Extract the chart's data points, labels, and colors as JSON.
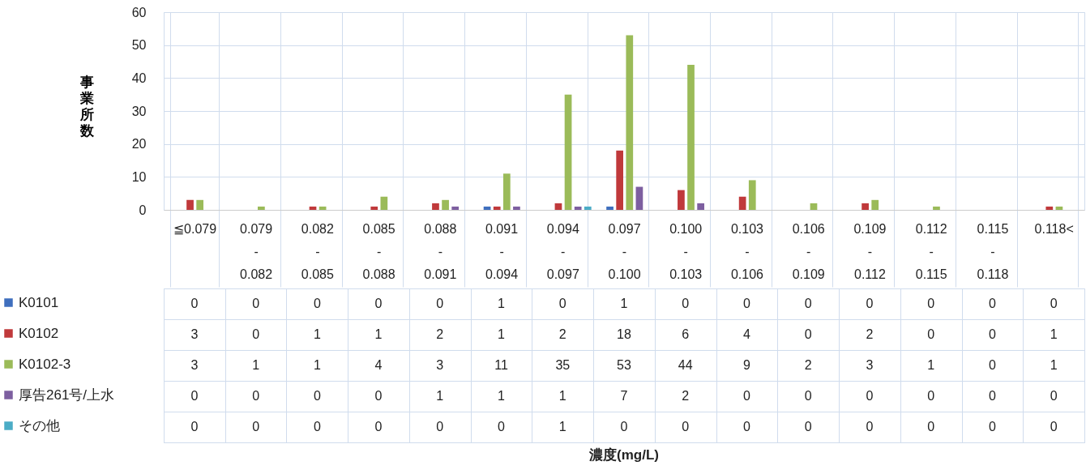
{
  "chart_data": {
    "type": "bar",
    "annotations": [
      "濃度(mg/L)"
    ],
    "ylabel": "事業所数",
    "categories": [
      "≦0.079",
      "0.079-0.082",
      "0.082-0.085",
      "0.085-0.088",
      "0.088-0.091",
      "0.091-0.094",
      "0.094-0.097",
      "0.097-0.100",
      "0.100-0.103",
      "0.103-0.106",
      "0.106-0.109",
      "0.109-0.112",
      "0.112-0.115",
      "0.115-0.118",
      "0.118<"
    ],
    "series": [
      {
        "name": "K0101",
        "color": "#3f6fbe",
        "values": [
          0,
          0,
          0,
          0,
          0,
          1,
          0,
          1,
          0,
          0,
          0,
          0,
          0,
          0,
          0
        ]
      },
      {
        "name": "K0102",
        "color": "#c0393b",
        "values": [
          3,
          0,
          1,
          1,
          2,
          1,
          2,
          18,
          6,
          4,
          0,
          2,
          0,
          0,
          1
        ]
      },
      {
        "name": "K0102-3",
        "color": "#9bbb59",
        "values": [
          3,
          1,
          1,
          4,
          3,
          11,
          35,
          53,
          44,
          9,
          2,
          3,
          1,
          0,
          1
        ]
      },
      {
        "name": "厚告261号/上水",
        "color": "#7d5fa0",
        "values": [
          0,
          0,
          0,
          0,
          1,
          1,
          1,
          7,
          2,
          0,
          0,
          0,
          0,
          0,
          0
        ]
      },
      {
        "name": "その他",
        "color": "#4bacc6",
        "values": [
          0,
          0,
          0,
          0,
          0,
          0,
          1,
          0,
          0,
          0,
          0,
          0,
          0,
          0,
          0
        ]
      }
    ],
    "ylim": [
      0,
      60
    ],
    "yticks": [
      0,
      10,
      20,
      30,
      40,
      50,
      60
    ],
    "grid": true,
    "data_labels": true,
    "legend": "left"
  }
}
